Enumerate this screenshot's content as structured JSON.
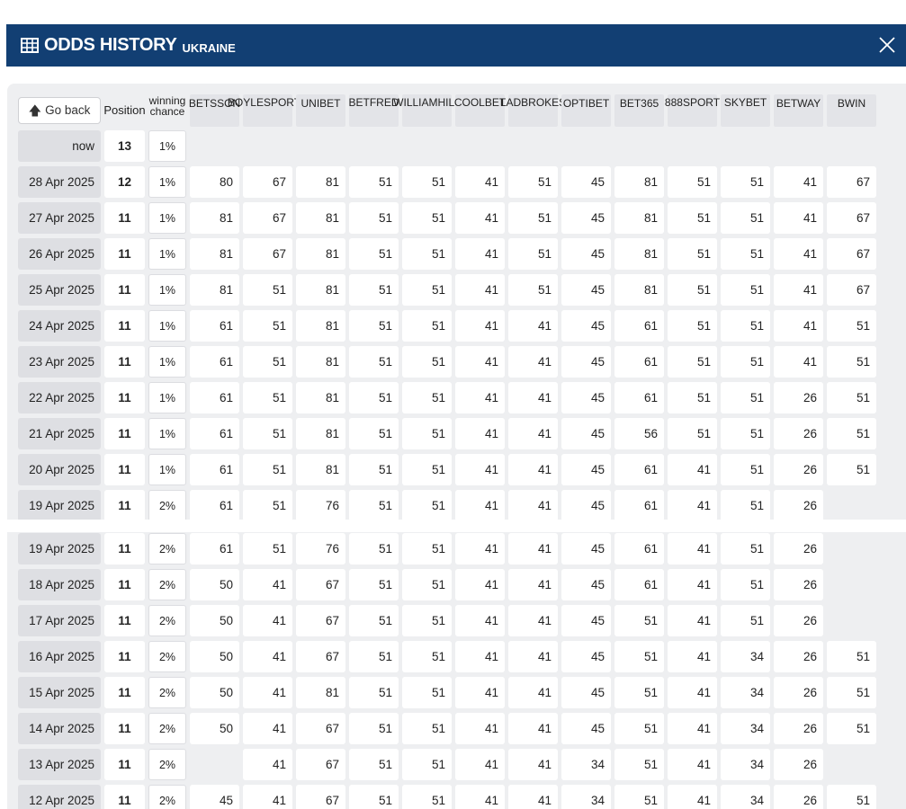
{
  "header": {
    "title": "ODDS HISTORY",
    "country": "UKRAINE"
  },
  "table": {
    "go_back_label": "Go back",
    "position_label": "Position",
    "winning_label_1": "winning",
    "winning_label_2": "chance",
    "bookmakers": [
      [
        "BETSSON"
      ],
      [
        "BOYLE",
        "SPORTS"
      ],
      [
        "UNIBET"
      ],
      [
        "BET",
        "FRED"
      ],
      [
        "WILLIAM",
        "HILL"
      ],
      [
        "COOL",
        "BET"
      ],
      [
        "LAD",
        "BROKES"
      ],
      [
        "OPTIBET"
      ],
      [
        "BET365"
      ],
      [
        "888",
        "SPORT"
      ],
      [
        "SKY",
        "BET"
      ],
      [
        "BETWAY"
      ],
      [
        "BWIN"
      ]
    ],
    "rows_top": [
      {
        "date": "now",
        "position": "13",
        "chance": "1%",
        "odds": []
      },
      {
        "date": "28 Apr 2025",
        "position": "12",
        "chance": "1%",
        "odds": [
          "80",
          "67",
          "81",
          "51",
          "51",
          "41",
          "51",
          "45",
          "81",
          "51",
          "51",
          "41",
          "67"
        ]
      },
      {
        "date": "27 Apr 2025",
        "position": "11",
        "chance": "1%",
        "odds": [
          "81",
          "67",
          "81",
          "51",
          "51",
          "41",
          "51",
          "45",
          "81",
          "51",
          "51",
          "41",
          "67"
        ]
      },
      {
        "date": "26 Apr 2025",
        "position": "11",
        "chance": "1%",
        "odds": [
          "81",
          "67",
          "81",
          "51",
          "51",
          "41",
          "51",
          "45",
          "81",
          "51",
          "51",
          "41",
          "67"
        ]
      },
      {
        "date": "25 Apr 2025",
        "position": "11",
        "chance": "1%",
        "odds": [
          "81",
          "51",
          "81",
          "51",
          "51",
          "41",
          "51",
          "45",
          "81",
          "51",
          "51",
          "41",
          "67"
        ]
      },
      {
        "date": "24 Apr 2025",
        "position": "11",
        "chance": "1%",
        "odds": [
          "61",
          "51",
          "81",
          "51",
          "51",
          "41",
          "41",
          "45",
          "61",
          "51",
          "51",
          "41",
          "51"
        ]
      },
      {
        "date": "23 Apr 2025",
        "position": "11",
        "chance": "1%",
        "odds": [
          "61",
          "51",
          "81",
          "51",
          "51",
          "41",
          "41",
          "45",
          "61",
          "51",
          "51",
          "41",
          "51"
        ]
      },
      {
        "date": "22 Apr 2025",
        "position": "11",
        "chance": "1%",
        "odds": [
          "61",
          "51",
          "81",
          "51",
          "51",
          "41",
          "41",
          "45",
          "61",
          "51",
          "51",
          "26",
          "51"
        ]
      },
      {
        "date": "21 Apr 2025",
        "position": "11",
        "chance": "1%",
        "odds": [
          "61",
          "51",
          "81",
          "51",
          "51",
          "41",
          "41",
          "45",
          "56",
          "51",
          "51",
          "26",
          "51"
        ]
      },
      {
        "date": "20 Apr 2025",
        "position": "11",
        "chance": "1%",
        "odds": [
          "61",
          "51",
          "81",
          "51",
          "51",
          "41",
          "41",
          "45",
          "61",
          "41",
          "51",
          "26",
          "51"
        ]
      },
      {
        "date": "19 Apr 2025",
        "position": "11",
        "chance": "2%",
        "odds": [
          "61",
          "51",
          "76",
          "51",
          "51",
          "41",
          "41",
          "45",
          "61",
          "41",
          "51",
          "26",
          ""
        ]
      }
    ],
    "rows_bottom": [
      {
        "date": "19 Apr 2025",
        "position": "11",
        "chance": "2%",
        "odds": [
          "61",
          "51",
          "76",
          "51",
          "51",
          "41",
          "41",
          "45",
          "61",
          "41",
          "51",
          "26",
          ""
        ]
      },
      {
        "date": "18 Apr 2025",
        "position": "11",
        "chance": "2%",
        "odds": [
          "50",
          "41",
          "67",
          "51",
          "51",
          "41",
          "41",
          "45",
          "61",
          "41",
          "51",
          "26",
          ""
        ]
      },
      {
        "date": "17 Apr 2025",
        "position": "11",
        "chance": "2%",
        "odds": [
          "50",
          "41",
          "67",
          "51",
          "51",
          "41",
          "41",
          "45",
          "51",
          "41",
          "51",
          "26",
          ""
        ]
      },
      {
        "date": "16 Apr 2025",
        "position": "11",
        "chance": "2%",
        "odds": [
          "50",
          "41",
          "67",
          "51",
          "51",
          "41",
          "41",
          "45",
          "51",
          "41",
          "34",
          "26",
          "51"
        ]
      },
      {
        "date": "15 Apr 2025",
        "position": "11",
        "chance": "2%",
        "odds": [
          "50",
          "41",
          "81",
          "51",
          "51",
          "41",
          "41",
          "45",
          "51",
          "41",
          "34",
          "26",
          "51"
        ]
      },
      {
        "date": "14 Apr 2025",
        "position": "11",
        "chance": "2%",
        "odds": [
          "50",
          "41",
          "67",
          "51",
          "51",
          "41",
          "41",
          "45",
          "51",
          "41",
          "34",
          "26",
          "51"
        ]
      },
      {
        "date": "13 Apr 2025",
        "position": "11",
        "chance": "2%",
        "odds": [
          "",
          "41",
          "67",
          "51",
          "51",
          "41",
          "41",
          "34",
          "51",
          "41",
          "34",
          "26",
          ""
        ]
      },
      {
        "date": "12 Apr 2025",
        "position": "11",
        "chance": "2%",
        "odds": [
          "45",
          "41",
          "67",
          "51",
          "51",
          "41",
          "41",
          "34",
          "51",
          "41",
          "34",
          "26",
          "51"
        ]
      }
    ]
  },
  "icons": {
    "table_icon": "table-grid-icon",
    "close_icon": "close-icon",
    "back_icon": "arrow-up-icon"
  },
  "colors": {
    "header_bg": "#123f73",
    "panel_bg": "#eeeff1",
    "date_cell_bg": "#dedfe3"
  }
}
